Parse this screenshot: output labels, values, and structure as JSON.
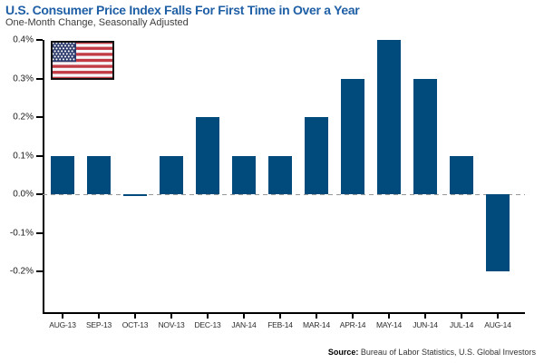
{
  "header": {
    "title": "U.S. Consumer Price Index Falls For First Time in Over a Year",
    "subtitle": "One-Month Change, Seasonally Adjusted"
  },
  "footer": {
    "source_label": "Source:",
    "source_text": "Bureau of Labor Statistics, U.S. Global Investors"
  },
  "icons": {
    "flag": "us-flag-icon"
  },
  "colors": {
    "title": "#1f5fa6",
    "bar": "#004a7c",
    "axis": "#000000",
    "zero_line": "#999999",
    "flag_red": "#c23b44",
    "flag_blue": "#2e3d6e"
  },
  "chart_data": {
    "type": "bar",
    "title": "U.S. Consumer Price Index Falls For First Time in Over a Year",
    "subtitle": "One-Month Change, Seasonally Adjusted",
    "unit": "percent one-month change",
    "categories": [
      "AUG-13",
      "SEP-13",
      "OCT-13",
      "NOV-13",
      "DEC-13",
      "JAN-14",
      "FEB-14",
      "MAR-14",
      "APR-14",
      "MAY-14",
      "JUN-14",
      "JUL-14",
      "AUG-14"
    ],
    "values": [
      0.1,
      0.1,
      0.0,
      0.1,
      0.2,
      0.1,
      0.1,
      0.2,
      0.3,
      0.4,
      0.3,
      0.1,
      -0.2
    ],
    "y_ticks": {
      "values": [
        0.4,
        0.3,
        0.2,
        0.1,
        0.0,
        -0.1,
        -0.2
      ],
      "labels": [
        "0.4%",
        "0.3%",
        "0.2%",
        "0.1%",
        "0.0%",
        "-0.1%",
        "-0.2%"
      ]
    },
    "ylim": [
      -0.3,
      0.4
    ],
    "xlabel": "",
    "ylabel": "",
    "grid": false,
    "legend": false,
    "zero_line_style": "dashed",
    "source": "Bureau of Labor Statistics, U.S. Global Investors"
  }
}
